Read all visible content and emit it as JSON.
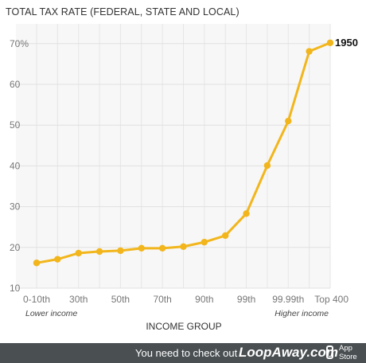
{
  "chart_data": {
    "type": "line",
    "title": "TOTAL TAX RATE (FEDERAL, STATE AND LOCAL)",
    "xlabel": "INCOME GROUP",
    "ylabel": "",
    "ylim": [
      10,
      70
    ],
    "y_ticks": [
      "70%",
      "60",
      "50",
      "40",
      "30",
      "20",
      "10"
    ],
    "y_tick_values": [
      70,
      60,
      50,
      40,
      30,
      20,
      10
    ],
    "x_tick_labels": [
      {
        "label": "0-10th",
        "index": 0
      },
      {
        "label": "30th",
        "index": 2
      },
      {
        "label": "50th",
        "index": 4
      },
      {
        "label": "70th",
        "index": 6
      },
      {
        "label": "90th",
        "index": 8
      },
      {
        "label": "99th",
        "index": 10
      },
      {
        "label": "99.99th",
        "index": 12
      },
      {
        "label": "Top 400",
        "index": 14
      }
    ],
    "axis_notes": {
      "left": "Lower income",
      "right": "Higher income"
    },
    "grid": true,
    "series": [
      {
        "name": "1950",
        "color": "#f2b61c",
        "values": [
          16.2,
          17.1,
          18.6,
          19.0,
          19.2,
          19.8,
          19.8,
          20.2,
          21.3,
          22.9,
          28.3,
          40.1,
          51.0,
          68.1,
          70.2
        ]
      }
    ]
  },
  "footer": {
    "text": "You need to check out",
    "brand": "LoopAway.com",
    "store_label_line1": "App",
    "store_label_line2": "Store",
    "bg_color": "#4a4f52"
  }
}
